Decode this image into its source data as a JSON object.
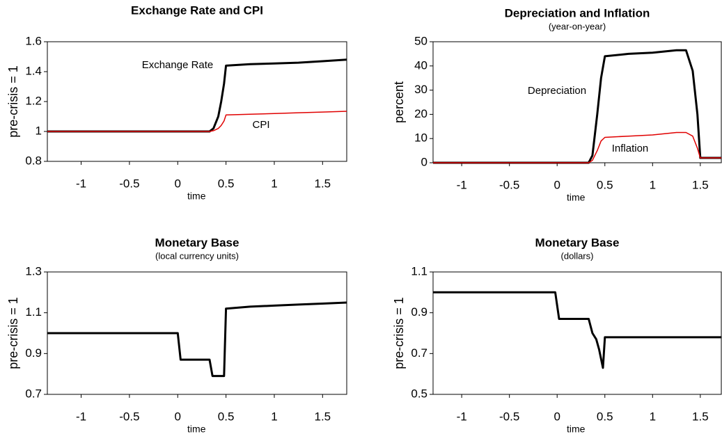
{
  "chart_data": [
    {
      "type": "line",
      "title": "Exchange Rate and CPI",
      "ylabel": "pre-crisis = 1",
      "xlabel": "time",
      "x": [
        -1.35,
        0.33,
        0.37,
        0.42,
        0.45,
        0.48,
        0.5,
        0.75,
        1.0,
        1.25,
        1.5,
        1.75
      ],
      "series": [
        {
          "name": "Exchange Rate",
          "color": "#000000",
          "values": [
            1,
            1,
            1.02,
            1.1,
            1.2,
            1.32,
            1.44,
            1.45,
            1.455,
            1.46,
            1.47,
            1.48
          ]
        },
        {
          "name": "CPI",
          "color": "#e00000",
          "values": [
            1,
            1,
            1.005,
            1.02,
            1.04,
            1.07,
            1.11,
            1.115,
            1.12,
            1.125,
            1.13,
            1.135
          ]
        }
      ],
      "xlim": [
        -1.35,
        1.75
      ],
      "xticks": [
        -1,
        -0.5,
        0,
        0.5,
        1,
        1.5
      ],
      "ylim": [
        0.8,
        1.6
      ],
      "yticks": [
        0.8,
        1,
        1.2,
        1.4,
        1.6
      ]
    },
    {
      "type": "line",
      "title": "Depreciation and Inflation",
      "subtitle": "(year-on-year)",
      "ylabel": "percent",
      "xlabel": "time",
      "x": [
        -1.3,
        0.33,
        0.37,
        0.42,
        0.46,
        0.5,
        0.75,
        1.0,
        1.25,
        1.35,
        1.42,
        1.47,
        1.5,
        1.72
      ],
      "series": [
        {
          "name": "Depreciation",
          "color": "#000000",
          "values": [
            0,
            0,
            3,
            20,
            35,
            44,
            45,
            45.5,
            46.5,
            46.5,
            38,
            20,
            2,
            2
          ]
        },
        {
          "name": "Inflation",
          "color": "#e00000",
          "values": [
            0,
            0,
            1,
            5,
            9,
            10.5,
            11,
            11.5,
            12.5,
            12.5,
            11,
            6,
            2,
            2
          ]
        }
      ],
      "xlim": [
        -1.3,
        1.72
      ],
      "xticks": [
        -1,
        -0.5,
        0,
        0.5,
        1,
        1.5
      ],
      "ylim": [
        0,
        50
      ],
      "yticks": [
        0,
        10,
        20,
        30,
        40,
        50
      ]
    },
    {
      "type": "line",
      "title": "Monetary Base",
      "subtitle": "(local currency units)",
      "ylabel": "pre-crisis = 1",
      "xlabel": "time",
      "x": [
        -1.35,
        0,
        0.03,
        0.33,
        0.36,
        0.48,
        0.5,
        0.75,
        1.0,
        1.25,
        1.5,
        1.75
      ],
      "series": [
        {
          "color": "#000000",
          "values": [
            1,
            1,
            0.87,
            0.87,
            0.79,
            0.79,
            1.12,
            1.13,
            1.135,
            1.14,
            1.145,
            1.15
          ]
        }
      ],
      "xlim": [
        -1.35,
        1.75
      ],
      "xticks": [
        -1,
        -0.5,
        0,
        0.5,
        1,
        1.5
      ],
      "ylim": [
        0.7,
        1.3
      ],
      "yticks": [
        0.7,
        0.9,
        1.1,
        1.3
      ]
    },
    {
      "type": "line",
      "title": "Monetary Base",
      "subtitle": "(dollars)",
      "ylabel": "pre-crisis = 1",
      "xlabel": "time",
      "x": [
        -1.3,
        -0.02,
        0.02,
        0.33,
        0.37,
        0.41,
        0.44,
        0.48,
        0.5,
        1.72
      ],
      "series": [
        {
          "color": "#000000",
          "values": [
            1,
            1,
            0.87,
            0.87,
            0.8,
            0.77,
            0.72,
            0.63,
            0.78,
            0.78
          ]
        }
      ],
      "xlim": [
        -1.3,
        1.72
      ],
      "xticks": [
        -1,
        -0.5,
        0,
        0.5,
        1,
        1.5
      ],
      "ylim": [
        0.5,
        1.1
      ],
      "yticks": [
        0.5,
        0.7,
        0.9,
        1.1
      ]
    }
  ]
}
